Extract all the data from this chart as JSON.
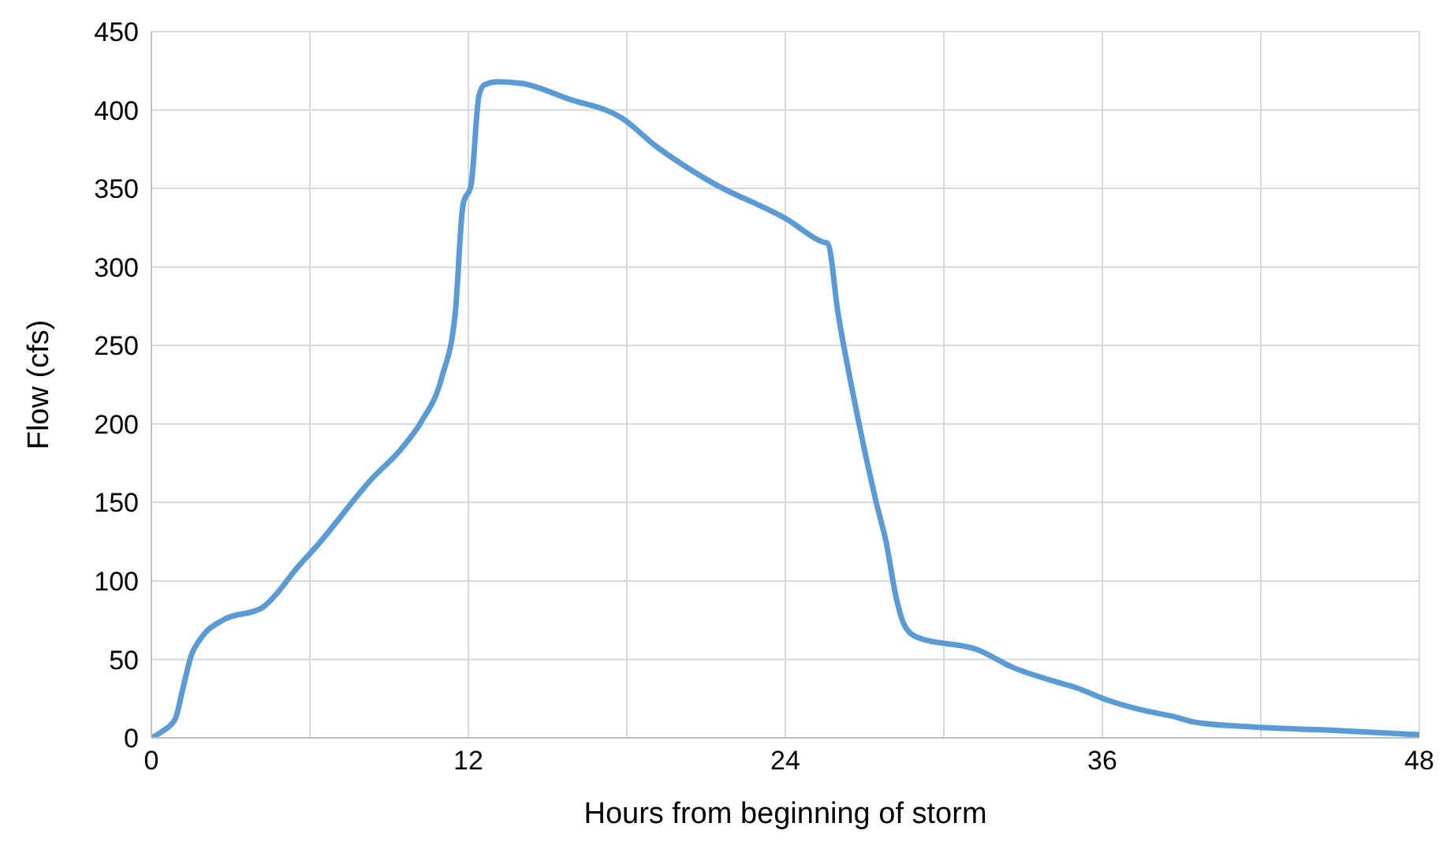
{
  "chart_data": {
    "type": "line",
    "xlabel": "Hours from beginning of storm",
    "ylabel": "Flow (cfs)",
    "x": [
      0,
      0.4,
      0.9,
      1.2,
      1.5,
      1.9,
      2.7,
      4.2,
      4.8,
      5.4,
      6.3,
      8.4,
      9.4,
      10.2,
      11,
      11.5,
      11.8,
      12.1,
      12.4,
      12.6,
      13.1,
      14,
      15.8,
      17.8,
      19.1,
      21.2,
      24.1,
      25.4,
      25.6,
      26,
      26.6,
      27.5,
      27.8,
      28.2,
      28.5,
      29,
      31.3,
      32.6,
      34.4,
      35,
      36.2,
      37.7,
      38.6,
      39.5,
      41.6,
      44.5,
      48
    ],
    "series": [
      {
        "color": "#5b9bd5",
        "values": [
          0,
          4,
          12,
          32,
          52,
          64,
          75,
          83,
          93,
          106,
          123,
          166,
          183,
          201,
          230,
          270,
          340,
          352,
          409,
          416,
          418,
          417,
          407,
          395,
          377,
          354,
          330,
          316,
          315,
          270,
          216,
          146,
          126,
          89,
          72,
          64,
          56,
          45,
          35,
          32,
          24,
          17,
          14,
          10,
          7,
          5,
          2
        ]
      }
    ],
    "xlim": [
      0,
      48
    ],
    "xticks": [
      0,
      {
        "value": 6,
        "label": null
      },
      12,
      {
        "value": 18,
        "label": null
      },
      24,
      {
        "value": 30,
        "label": null
      },
      36,
      {
        "value": 42,
        "label": null
      },
      48
    ],
    "ylim": [
      0,
      450
    ],
    "yticks": [
      0,
      50,
      100,
      150,
      200,
      250,
      300,
      350,
      400,
      450
    ],
    "grid": true,
    "legend": false,
    "marker": "none",
    "line_style": "solid"
  }
}
